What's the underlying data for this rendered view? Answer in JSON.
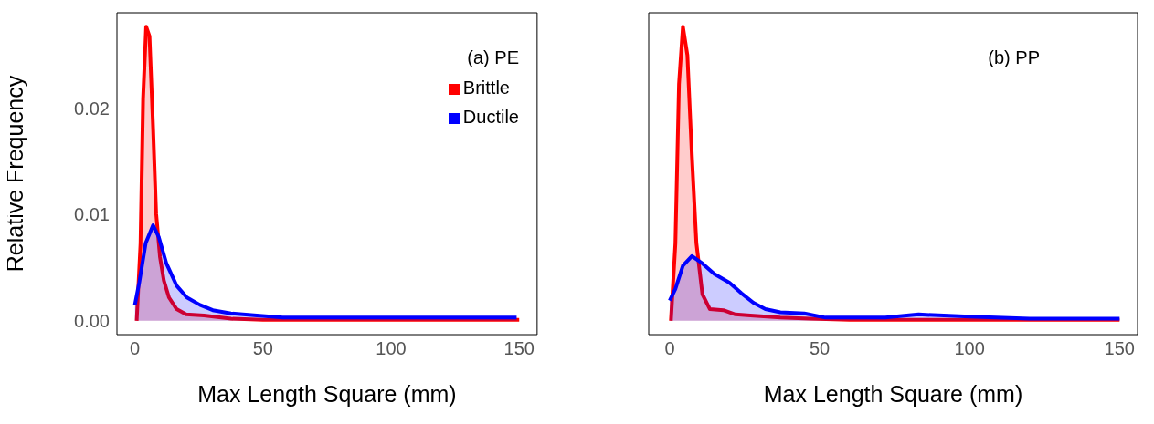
{
  "chart_data": [
    {
      "type": "area",
      "xlabel": "Max Length Square (mm)",
      "ylabel": "Relative Frequency",
      "annotations": [
        "(a) PE"
      ],
      "legend": "top right",
      "grid": false,
      "xlim": [
        -7,
        157
      ],
      "xticks": [
        0,
        50,
        100,
        150
      ],
      "ylim": [
        -0.0013,
        0.029
      ],
      "yticks": [
        {
          "value": 0,
          "label": "0.00"
        },
        {
          "value": 0.01,
          "label": "0.01"
        },
        {
          "value": 0.02,
          "label": "0.02"
        }
      ],
      "series": [
        {
          "name": "Brittle",
          "color": "#ff0000",
          "x": [
            0.7,
            2.2,
            3.2,
            4.4,
            5.7,
            7.1,
            8.3,
            9.8,
            11.3,
            13.3,
            16.3,
            20,
            27,
            37.5,
            50,
            75,
            100,
            125,
            150
          ],
          "values": [
            0,
            0.0073,
            0.0209,
            0.0277,
            0.0268,
            0.0182,
            0.0101,
            0.006,
            0.0038,
            0.0022,
            0.0011,
            0.0006,
            0.0005,
            0.0002,
            0.0001,
            0.0001,
            0.0001,
            0.0001,
            0.0001
          ]
        },
        {
          "name": "Ductile",
          "color": "#0000ff",
          "x": [
            0,
            1.7,
            4.2,
            7.1,
            9.3,
            12.3,
            16.3,
            20.3,
            25.4,
            30.4,
            37.5,
            47.6,
            57.7,
            80,
            100,
            125,
            149
          ],
          "values": [
            0.0015,
            0.0036,
            0.0073,
            0.009,
            0.0079,
            0.0054,
            0.0033,
            0.0022,
            0.0015,
            0.001,
            0.0007,
            0.0005,
            0.0003,
            0.0003,
            0.0003,
            0.0003,
            0.0003
          ]
        }
      ]
    },
    {
      "type": "area",
      "xlabel": "Max Length Square (mm)",
      "annotations": [
        "(b) PP"
      ],
      "grid": false,
      "tick_labels": "x",
      "xlim": [
        -7,
        156
      ],
      "xticks": [
        0,
        50,
        100,
        150
      ],
      "ylim": [
        -0.0013,
        0.029
      ],
      "series": [
        {
          "color": "#ff0000",
          "x": [
            0.4,
            1.9,
            3.1,
            4.4,
            5.9,
            7.4,
            8.9,
            10.9,
            13.4,
            17.9,
            21.9,
            26.9,
            36.9,
            46.9,
            60,
            80,
            100,
            125,
            150
          ],
          "values": [
            0,
            0.0073,
            0.0223,
            0.0277,
            0.025,
            0.0155,
            0.0073,
            0.0025,
            0.0011,
            0.001,
            0.0006,
            0.0005,
            0.0003,
            0.0002,
            0.0001,
            0.0001,
            0.0001,
            0.0001,
            0.0001
          ]
        },
        {
          "color": "#0000ff",
          "x": [
            0,
            1.9,
            4.4,
            7.4,
            10.9,
            14.9,
            19.9,
            23.9,
            27.9,
            31.9,
            36.9,
            44.9,
            51.9,
            71.9,
            83,
            100,
            120,
            150
          ],
          "values": [
            0.0019,
            0.003,
            0.0052,
            0.0061,
            0.0054,
            0.0044,
            0.0036,
            0.0026,
            0.0017,
            0.0011,
            0.0008,
            0.0007,
            0.0003,
            0.0003,
            0.0006,
            0.0004,
            0.0002,
            0.0002
          ]
        }
      ]
    }
  ]
}
